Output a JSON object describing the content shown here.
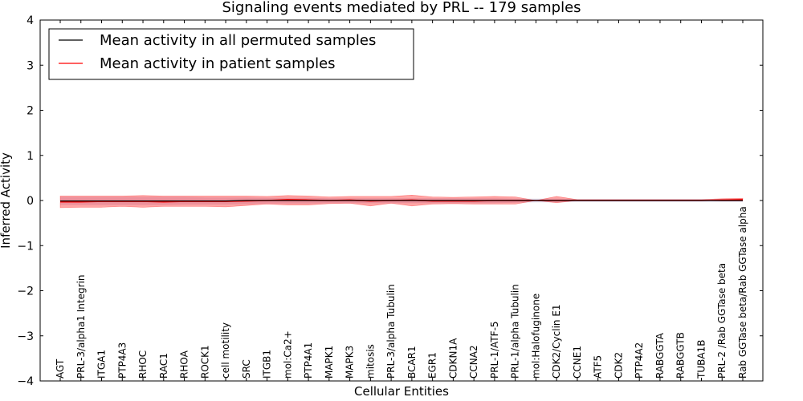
{
  "chart_data": {
    "type": "line",
    "title": "Signaling events mediated by PRL -- 179 samples",
    "xlabel": "Cellular Entities",
    "ylabel": "Inferred Activity",
    "ylim": [
      -4,
      4
    ],
    "yticks": [
      -4,
      -3,
      -2,
      -1,
      0,
      1,
      2,
      3,
      4
    ],
    "ytick_labels": [
      "−4",
      "−3",
      "−2",
      "−1",
      "0",
      "1",
      "2",
      "3",
      "4"
    ],
    "legend_position": "top-left",
    "categories": [
      "AGT",
      "PRL-3/alpha1 Integrin",
      "ITGA1",
      "PTP4A3",
      "RHOC",
      "RAC1",
      "RHOA",
      "ROCK1",
      "cell motility",
      "SRC",
      "ITGB1",
      "mol:Ca2+",
      "PTP4A1",
      "MAPK1",
      "MAPK3",
      "mitosis",
      "PRL-3/alpha Tubulin",
      "BCAR1",
      "EGR1",
      "CDKN1A",
      "CCNA2",
      "PRL-1/ATF-5",
      "PRL-1/alpha Tubulin",
      "mol:Halofuginone",
      "CDK2/Cyclin E1",
      "CCNE1",
      "ATF5",
      "CDK2",
      "PTP4A2",
      "RABGGTA",
      "RABGGTB",
      "TUBA1B",
      "PRL-2 /Rab GGTase beta",
      "Rab GGTase beta/Rab GGTase alpha"
    ],
    "series": [
      {
        "name": "Mean activity in all permuted samples",
        "color": "#000000",
        "values": [
          -0.01,
          -0.01,
          -0.01,
          -0.01,
          -0.01,
          -0.01,
          -0.01,
          -0.01,
          -0.01,
          0.0,
          0.0,
          0.0,
          0.0,
          0.0,
          0.0,
          0.0,
          0.0,
          0.0,
          0.0,
          0.0,
          0.0,
          0.0,
          0.0,
          0.0,
          0.0,
          0.0,
          0.0,
          0.0,
          0.0,
          0.0,
          0.0,
          0.0,
          0.0,
          0.0
        ],
        "band_lower": [
          -0.1,
          -0.1,
          -0.1,
          -0.1,
          -0.1,
          -0.1,
          -0.09,
          -0.09,
          -0.09,
          -0.08,
          -0.07,
          -0.07,
          -0.07,
          -0.06,
          -0.06,
          -0.06,
          -0.06,
          -0.06,
          -0.06,
          -0.06,
          -0.06,
          -0.06,
          -0.05,
          -0.04,
          -0.04,
          -0.03,
          -0.03,
          -0.03,
          -0.03,
          -0.03,
          -0.03,
          -0.03,
          -0.03,
          -0.03
        ],
        "band_upper": [
          0.08,
          0.08,
          0.08,
          0.08,
          0.08,
          0.08,
          0.08,
          0.07,
          0.07,
          0.07,
          0.06,
          0.06,
          0.06,
          0.05,
          0.05,
          0.05,
          0.05,
          0.05,
          0.05,
          0.05,
          0.05,
          0.05,
          0.04,
          0.04,
          0.04,
          0.03,
          0.03,
          0.03,
          0.03,
          0.03,
          0.03,
          0.03,
          0.03,
          0.03
        ]
      },
      {
        "name": "Mean activity in patient samples",
        "color": "#ff0000",
        "values": [
          -0.03,
          -0.03,
          -0.02,
          -0.02,
          -0.02,
          -0.03,
          -0.02,
          -0.02,
          -0.02,
          -0.01,
          0.0,
          0.02,
          0.01,
          0.0,
          0.01,
          -0.01,
          0.0,
          0.01,
          -0.01,
          -0.01,
          -0.01,
          0.0,
          0.0,
          0.0,
          0.0,
          0.0,
          0.0,
          0.0,
          0.0,
          0.0,
          0.0,
          0.0,
          0.01,
          0.02
        ],
        "band_lower": [
          -0.16,
          -0.15,
          -0.15,
          -0.13,
          -0.15,
          -0.13,
          -0.13,
          -0.13,
          -0.14,
          -0.11,
          -0.08,
          -0.1,
          -0.1,
          -0.07,
          -0.06,
          -0.12,
          -0.06,
          -0.12,
          -0.08,
          -0.07,
          -0.08,
          -0.08,
          -0.08,
          0.0,
          -0.05,
          0.0,
          0.0,
          0.0,
          0.0,
          0.0,
          0.0,
          0.0,
          -0.01,
          -0.01
        ],
        "band_upper": [
          0.1,
          0.1,
          0.1,
          0.1,
          0.11,
          0.1,
          0.1,
          0.1,
          0.1,
          0.1,
          0.09,
          0.11,
          0.1,
          0.08,
          0.09,
          0.09,
          0.09,
          0.12,
          0.08,
          0.07,
          0.08,
          0.09,
          0.08,
          0.0,
          0.09,
          0.02,
          0.02,
          0.02,
          0.02,
          0.02,
          0.02,
          0.02,
          0.04,
          0.05
        ]
      }
    ]
  }
}
